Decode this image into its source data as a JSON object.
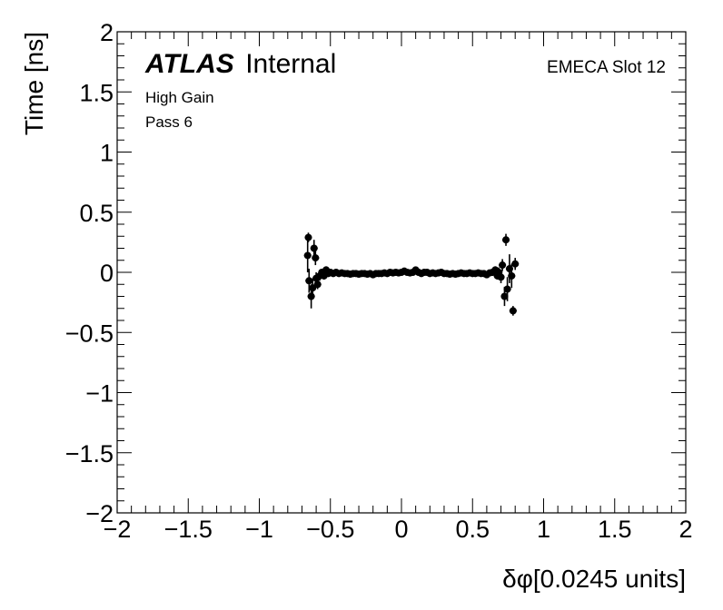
{
  "chart_data": {
    "type": "scatter",
    "xlabel": "δφ[0.0245 units]",
    "ylabel": "Time [ns]",
    "xlim": [
      -2,
      2
    ],
    "ylim": [
      -2,
      2
    ],
    "x_ticks": [
      "−2",
      "−1.5",
      "−1",
      "−0.5",
      "0",
      "0.5",
      "1",
      "1.5",
      "2"
    ],
    "y_ticks": [
      "−2",
      "−1.5",
      "−1",
      "−0.5",
      "0",
      "0.5",
      "1",
      "1.5",
      "2"
    ],
    "grid": false,
    "marker_color": "#000000",
    "annotations": {
      "experiment": "ATLAS",
      "status": "Internal",
      "line1": "High Gain",
      "line2": "Pass 6",
      "detector": "EMECA Slot 12"
    },
    "series": [
      {
        "points": [
          {
            "x": -0.66,
            "y": 0.14,
            "err": 0.14
          },
          {
            "x": -0.655,
            "y": 0.29,
            "err": 0.04
          },
          {
            "x": -0.65,
            "y": -0.07,
            "err": 0.1
          },
          {
            "x": -0.635,
            "y": -0.2,
            "err": 0.1
          },
          {
            "x": -0.625,
            "y": -0.13,
            "err": 0.08
          },
          {
            "x": -0.615,
            "y": 0.2,
            "err": 0.07
          },
          {
            "x": -0.605,
            "y": 0.12,
            "err": 0.06
          },
          {
            "x": -0.6,
            "y": -0.05,
            "err": 0.05
          },
          {
            "x": -0.59,
            "y": -0.1,
            "err": 0.04
          },
          {
            "x": -0.575,
            "y": -0.03,
            "err": 0.04
          },
          {
            "x": -0.56,
            "y": 0.0,
            "err": 0.03
          },
          {
            "x": -0.545,
            "y": -0.03,
            "err": 0.03
          },
          {
            "x": -0.53,
            "y": 0.02,
            "err": 0.03
          },
          {
            "x": -0.515,
            "y": -0.01,
            "err": 0.02
          },
          {
            "x": -0.5,
            "y": 0.0,
            "err": 0.02
          },
          {
            "x": -0.48,
            "y": -0.01,
            "err": 0.02
          },
          {
            "x": -0.46,
            "y": 0.0,
            "err": 0.02
          },
          {
            "x": -0.44,
            "y": -0.01,
            "err": 0.02
          },
          {
            "x": -0.42,
            "y": -0.005,
            "err": 0.02
          },
          {
            "x": -0.4,
            "y": -0.01,
            "err": 0.02
          },
          {
            "x": -0.38,
            "y": -0.01,
            "err": 0.02
          },
          {
            "x": -0.36,
            "y": -0.015,
            "err": 0.02
          },
          {
            "x": -0.34,
            "y": -0.01,
            "err": 0.02
          },
          {
            "x": -0.32,
            "y": -0.01,
            "err": 0.02
          },
          {
            "x": -0.3,
            "y": -0.015,
            "err": 0.02
          },
          {
            "x": -0.28,
            "y": -0.01,
            "err": 0.02
          },
          {
            "x": -0.26,
            "y": -0.01,
            "err": 0.02
          },
          {
            "x": -0.24,
            "y": -0.015,
            "err": 0.02
          },
          {
            "x": -0.22,
            "y": -0.01,
            "err": 0.02
          },
          {
            "x": -0.2,
            "y": -0.02,
            "err": 0.02
          },
          {
            "x": -0.18,
            "y": -0.01,
            "err": 0.02
          },
          {
            "x": -0.16,
            "y": -0.01,
            "err": 0.02
          },
          {
            "x": -0.14,
            "y": -0.01,
            "err": 0.02
          },
          {
            "x": -0.12,
            "y": -0.005,
            "err": 0.02
          },
          {
            "x": -0.1,
            "y": -0.01,
            "err": 0.02
          },
          {
            "x": -0.08,
            "y": 0.0,
            "err": 0.02
          },
          {
            "x": -0.06,
            "y": -0.005,
            "err": 0.02
          },
          {
            "x": -0.04,
            "y": 0.0,
            "err": 0.02
          },
          {
            "x": -0.02,
            "y": -0.005,
            "err": 0.02
          },
          {
            "x": 0.0,
            "y": 0.0,
            "err": 0.02
          },
          {
            "x": 0.02,
            "y": 0.01,
            "err": 0.02
          },
          {
            "x": 0.04,
            "y": 0.0,
            "err": 0.02
          },
          {
            "x": 0.06,
            "y": -0.005,
            "err": 0.02
          },
          {
            "x": 0.08,
            "y": 0.0,
            "err": 0.02
          },
          {
            "x": 0.1,
            "y": 0.02,
            "err": 0.02
          },
          {
            "x": 0.12,
            "y": 0.0,
            "err": 0.02
          },
          {
            "x": 0.14,
            "y": -0.01,
            "err": 0.02
          },
          {
            "x": 0.16,
            "y": 0.0,
            "err": 0.02
          },
          {
            "x": 0.18,
            "y": 0.0,
            "err": 0.02
          },
          {
            "x": 0.2,
            "y": -0.01,
            "err": 0.02
          },
          {
            "x": 0.22,
            "y": -0.005,
            "err": 0.02
          },
          {
            "x": 0.24,
            "y": -0.01,
            "err": 0.02
          },
          {
            "x": 0.26,
            "y": -0.005,
            "err": 0.02
          },
          {
            "x": 0.28,
            "y": 0.0,
            "err": 0.02
          },
          {
            "x": 0.3,
            "y": -0.01,
            "err": 0.02
          },
          {
            "x": 0.32,
            "y": -0.01,
            "err": 0.02
          },
          {
            "x": 0.34,
            "y": -0.015,
            "err": 0.02
          },
          {
            "x": 0.36,
            "y": -0.01,
            "err": 0.02
          },
          {
            "x": 0.38,
            "y": -0.015,
            "err": 0.02
          },
          {
            "x": 0.4,
            "y": -0.01,
            "err": 0.02
          },
          {
            "x": 0.42,
            "y": -0.005,
            "err": 0.02
          },
          {
            "x": 0.44,
            "y": -0.01,
            "err": 0.02
          },
          {
            "x": 0.46,
            "y": -0.01,
            "err": 0.02
          },
          {
            "x": 0.48,
            "y": -0.005,
            "err": 0.02
          },
          {
            "x": 0.5,
            "y": -0.01,
            "err": 0.02
          },
          {
            "x": 0.52,
            "y": -0.01,
            "err": 0.02
          },
          {
            "x": 0.54,
            "y": -0.005,
            "err": 0.02
          },
          {
            "x": 0.56,
            "y": -0.01,
            "err": 0.02
          },
          {
            "x": 0.58,
            "y": -0.01,
            "err": 0.02
          },
          {
            "x": 0.6,
            "y": -0.02,
            "err": 0.02
          },
          {
            "x": 0.62,
            "y": -0.005,
            "err": 0.02
          },
          {
            "x": 0.64,
            "y": 0.0,
            "err": 0.03
          },
          {
            "x": 0.66,
            "y": 0.02,
            "err": 0.03
          },
          {
            "x": 0.675,
            "y": -0.03,
            "err": 0.03
          },
          {
            "x": 0.685,
            "y": 0.0,
            "err": 0.04
          },
          {
            "x": 0.7,
            "y": -0.04,
            "err": 0.05
          },
          {
            "x": 0.71,
            "y": 0.06,
            "err": 0.05
          },
          {
            "x": 0.725,
            "y": -0.2,
            "err": 0.08
          },
          {
            "x": 0.735,
            "y": 0.27,
            "err": 0.05
          },
          {
            "x": 0.745,
            "y": -0.14,
            "err": 0.1
          },
          {
            "x": 0.76,
            "y": 0.03,
            "err": 0.12
          },
          {
            "x": 0.775,
            "y": -0.03,
            "err": 0.1
          },
          {
            "x": 0.785,
            "y": -0.32,
            "err": 0.04
          },
          {
            "x": 0.8,
            "y": 0.07,
            "err": 0.05
          }
        ]
      }
    ]
  }
}
